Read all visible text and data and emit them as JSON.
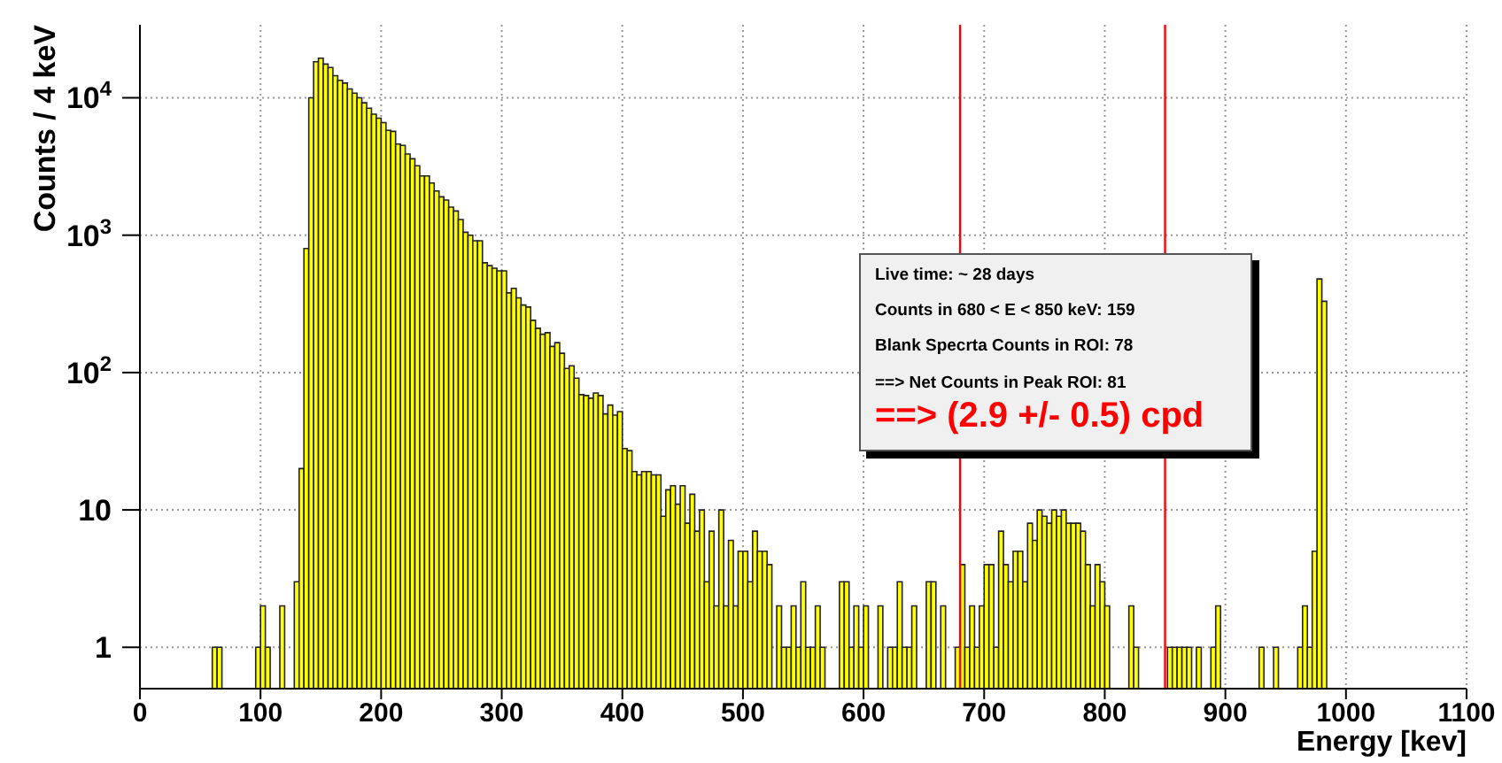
{
  "chart_data": {
    "type": "histogram",
    "xlabel": "Energy [kev]",
    "ylabel": "Counts / 4 keV",
    "bins": [
      0,
      4,
      8,
      12,
      16,
      20,
      24,
      28,
      32,
      36,
      40,
      44,
      48,
      52,
      56,
      60,
      64,
      68,
      72,
      76,
      80,
      84,
      88,
      92,
      96,
      100,
      104,
      108,
      112,
      116,
      120,
      124,
      128,
      132,
      136,
      140,
      144,
      148,
      152,
      156,
      160,
      164,
      168,
      172,
      176,
      180,
      184,
      188,
      192,
      196,
      200,
      204,
      208,
      212,
      216,
      220,
      224,
      228,
      232,
      236,
      240,
      244,
      248,
      252,
      256,
      260,
      264,
      268,
      272,
      276,
      280,
      284,
      288,
      292,
      296,
      300,
      304,
      308,
      312,
      316,
      320,
      324,
      328,
      332,
      336,
      340,
      344,
      348,
      352,
      356,
      360,
      364,
      368,
      372,
      376,
      380,
      384,
      388,
      392,
      396,
      400,
      404,
      408,
      412,
      416,
      420,
      424,
      428,
      432,
      436,
      440,
      444,
      448,
      452,
      456,
      460,
      464,
      468,
      472,
      476,
      480,
      484,
      488,
      492,
      496,
      500,
      504,
      508,
      512,
      516,
      520,
      524,
      528,
      532,
      536,
      540,
      544,
      548,
      552,
      556,
      560,
      564,
      568,
      572,
      576,
      580,
      584,
      588,
      592,
      596,
      600,
      604,
      608,
      612,
      616,
      620,
      624,
      628,
      632,
      636,
      640,
      644,
      648,
      652,
      656,
      660,
      664,
      668,
      672,
      676,
      680,
      684,
      688,
      692,
      696,
      700,
      704,
      708,
      712,
      716,
      720,
      724,
      728,
      732,
      736,
      740,
      744,
      748,
      752,
      756,
      760,
      764,
      768,
      772,
      776,
      780,
      784,
      788,
      792,
      796,
      800,
      804,
      808,
      812,
      816,
      820,
      824,
      828,
      832,
      836,
      840,
      844,
      848,
      852,
      856,
      860,
      864,
      868,
      872,
      876,
      880,
      884,
      888,
      892,
      896,
      900,
      904,
      908,
      912,
      916,
      920,
      924,
      928,
      932,
      936,
      940,
      944,
      948,
      952,
      956,
      960,
      964,
      968,
      972,
      976,
      980,
      984,
      988,
      992,
      996,
      1000,
      1004,
      1008,
      1012,
      1016,
      1020,
      1024,
      1028,
      1032,
      1036,
      1040,
      1044,
      1048,
      1052,
      1056,
      1060,
      1064,
      1068,
      1072,
      1076,
      1080,
      1084,
      1088,
      1092,
      1096,
      1100
    ],
    "values": [
      null,
      null,
      null,
      null,
      null,
      null,
      null,
      null,
      null,
      null,
      null,
      null,
      null,
      null,
      null,
      1,
      1,
      null,
      null,
      null,
      null,
      null,
      null,
      null,
      1,
      2,
      1,
      null,
      null,
      2,
      null,
      null,
      3,
      20,
      800,
      10000,
      18300,
      19400,
      17600,
      16600,
      14500,
      13400,
      12800,
      11600,
      10800,
      10000,
      9200,
      8400,
      7600,
      7100,
      6600,
      5800,
      5700,
      4600,
      4500,
      3900,
      3600,
      3200,
      2700,
      2700,
      2400,
      2100,
      1900,
      1800,
      1600,
      1500,
      1300,
      1050,
      1000,
      910,
      910,
      630,
      600,
      575,
      550,
      550,
      380,
      410,
      350,
      310,
      300,
      240,
      210,
      190,
      195,
      155,
      165,
      138,
      107,
      112,
      91,
      69,
      68,
      65,
      71,
      68,
      50,
      58,
      49,
      52,
      28,
      27,
      19,
      18,
      19,
      19,
      18,
      18,
      9,
      14,
      15,
      11,
      15,
      8,
      13,
      7,
      10,
      3,
      7,
      2,
      10,
      2,
      6,
      2,
      5,
      5,
      3,
      7,
      5,
      5,
      4,
      null,
      2,
      1,
      1,
      2,
      1,
      3,
      1,
      1,
      2,
      1,
      null,
      null,
      null,
      3,
      3,
      1,
      2,
      1,
      2,
      null,
      null,
      2,
      null,
      1,
      1,
      3,
      1,
      1,
      2,
      null,
      null,
      3,
      3,
      null,
      2,
      null,
      null,
      1,
      4,
      1,
      2,
      1,
      2,
      4,
      4,
      1,
      7,
      4,
      3,
      5,
      5,
      3,
      8,
      6,
      10,
      9,
      8,
      10,
      9,
      10,
      8,
      8,
      8,
      7,
      4,
      2,
      4,
      3,
      2,
      null,
      null,
      null,
      null,
      2,
      1,
      null,
      null,
      null,
      null,
      null,
      null,
      1,
      1,
      1,
      1,
      1,
      null,
      1,
      null,
      null,
      1,
      2,
      null,
      null,
      null,
      null,
      null,
      null,
      null,
      null,
      1,
      null,
      null,
      1,
      null,
      null,
      null,
      null,
      1,
      2,
      1,
      5,
      480,
      330,
      null,
      null,
      null,
      null,
      null,
      null,
      null,
      null,
      null,
      null,
      null,
      null,
      null,
      null,
      null,
      null,
      null,
      null,
      null,
      null,
      null,
      null,
      null,
      null,
      null,
      null,
      null,
      null,
      null
    ],
    "color": "#ffff00",
    "log": "y",
    "grid": true,
    "xlim": [
      0,
      1100
    ],
    "xticks": [
      0,
      100,
      200,
      300,
      400,
      500,
      600,
      700,
      800,
      900,
      1000,
      1100
    ],
    "ylim": [
      0.5,
      34000
    ],
    "yticks": [
      1,
      10,
      {
        "value": 100,
        "label": "10$^{2}$"
      },
      {
        "value": 1000,
        "label": "10$^{3}$"
      },
      {
        "value": 10000,
        "label": "10$^{4}$"
      }
    ],
    "ref_lines": [
      {
        "axis": "x",
        "value": 680,
        "color": "#ff0000"
      },
      {
        "axis": "x",
        "value": 850,
        "color": "#ff0000"
      }
    ],
    "annotations": [
      "Live time: ~ 28 days",
      "Counts in 680 < E < 850 keV: 159",
      "Blank Specrta Counts in ROI: 78",
      "==> Net Counts in Peak ROI: 81",
      "==> (2.9 +/- 0.5) cpd"
    ]
  }
}
